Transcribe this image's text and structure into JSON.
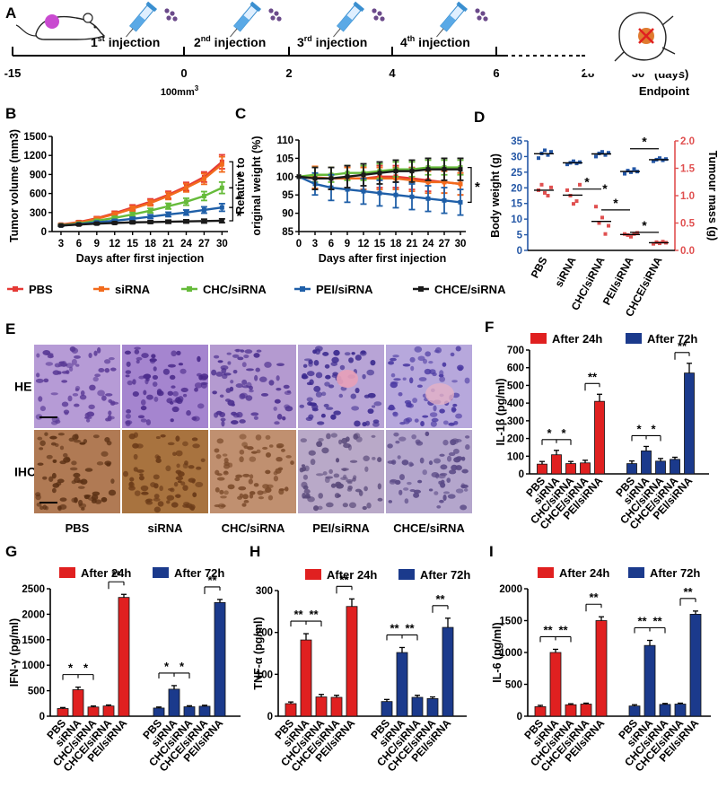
{
  "figure": {
    "panel_labels": [
      "A",
      "B",
      "C",
      "D",
      "E",
      "F",
      "G",
      "H",
      "I"
    ]
  },
  "timeline": {
    "ticks": [
      "-15",
      "0",
      "2",
      "4",
      "6",
      "28",
      "30"
    ],
    "units": "(days)",
    "injections": [
      {
        "ord": "1",
        "sup": "st",
        "rest": " injection"
      },
      {
        "ord": "2",
        "sup": "nd",
        "rest": " injection"
      },
      {
        "ord": "3",
        "sup": "rd",
        "rest": " injection"
      },
      {
        "ord": "4",
        "sup": "th",
        "rest": " injection"
      }
    ],
    "volume_label": "100mm",
    "volume_sup": "3",
    "endpoint": "Endpoint"
  },
  "colors": {
    "PBS": "#e53935",
    "siRNA": "#f26b1d",
    "CHC/siRNA": "#66bb3a",
    "PEI/siRNA": "#1f5fa8",
    "CHCE/siRNA": "#1a1a1a",
    "bar24": "#e02020",
    "bar72": "#1b3a8c",
    "d_left": "#2457a6",
    "d_right": "#e05050"
  },
  "legend": {
    "groups": [
      "PBS",
      "siRNA",
      "CHC/siRNA",
      "PEI/siRNA",
      "CHCE/siRNA"
    ]
  },
  "histology": {
    "rows": [
      "HE",
      "IHC"
    ],
    "cols": [
      "PBS",
      "siRNA",
      "CHC/siRNA",
      "PEI/siRNA",
      "CHCE/siRNA"
    ]
  },
  "chart_data": [
    {
      "id": "B",
      "type": "line",
      "ylabel": "Tumor volume (mm3)",
      "xlabel": "Days after first injection",
      "x": [
        3,
        6,
        9,
        12,
        15,
        18,
        21,
        24,
        27,
        30
      ],
      "xticks": [
        "3",
        "6",
        "9",
        "12",
        "15",
        "18",
        "21",
        "24",
        "27",
        "30"
      ],
      "ylim": [
        0,
        1500
      ],
      "yticks": [
        0,
        300,
        600,
        900,
        1200,
        1500
      ],
      "series": [
        {
          "name": "PBS",
          "values": [
            110,
            150,
            210,
            290,
            380,
            470,
            580,
            710,
            860,
            1100
          ],
          "err": [
            15,
            20,
            25,
            30,
            40,
            45,
            55,
            65,
            80,
            110
          ]
        },
        {
          "name": "siRNA",
          "values": [
            105,
            140,
            200,
            275,
            360,
            450,
            560,
            690,
            830,
            1060
          ],
          "err": [
            15,
            20,
            25,
            30,
            40,
            45,
            55,
            65,
            85,
            120
          ]
        },
        {
          "name": "CHC/siRNA",
          "values": [
            100,
            125,
            170,
            215,
            270,
            330,
            400,
            470,
            560,
            690
          ],
          "err": [
            12,
            15,
            20,
            25,
            30,
            35,
            45,
            55,
            70,
            90
          ]
        },
        {
          "name": "PEI/siRNA",
          "values": [
            95,
            115,
            145,
            170,
            200,
            235,
            270,
            300,
            340,
            380
          ],
          "err": [
            10,
            12,
            15,
            20,
            25,
            30,
            35,
            40,
            50,
            60
          ]
        },
        {
          "name": "CHCE/siRNA",
          "values": [
            95,
            110,
            125,
            135,
            145,
            150,
            155,
            160,
            165,
            170
          ],
          "err": [
            10,
            12,
            15,
            15,
            20,
            20,
            25,
            25,
            30,
            30
          ]
        }
      ],
      "annotations": [
        "*",
        "*",
        "*"
      ]
    },
    {
      "id": "C",
      "type": "line",
      "ylabel": "Relative to original weight (%)",
      "ylabel_lines": [
        "Relative to",
        "original weight (%)"
      ],
      "xlabel": "Days after first injection",
      "x": [
        0,
        3,
        6,
        9,
        12,
        15,
        18,
        21,
        24,
        27,
        30
      ],
      "xticks": [
        "0",
        "3",
        "6",
        "9",
        "12",
        "15",
        "18",
        "21",
        "24",
        "27",
        "30"
      ],
      "ylim": [
        85,
        110
      ],
      "yticks": [
        85,
        90,
        95,
        100,
        105,
        110
      ],
      "series": [
        {
          "name": "PBS",
          "values": [
            100,
            99.5,
            99.5,
            99.5,
            99.5,
            100,
            100,
            99.5,
            99,
            98.5,
            98
          ],
          "err": [
            0,
            3,
            3,
            3,
            3,
            3,
            3,
            3,
            3,
            3,
            3
          ]
        },
        {
          "name": "siRNA",
          "values": [
            100,
            99.8,
            99.5,
            99.5,
            99.5,
            99.5,
            99.5,
            99,
            98.5,
            98.5,
            98
          ],
          "err": [
            0,
            3,
            3,
            3,
            3,
            3,
            3,
            3,
            3,
            3,
            3
          ]
        },
        {
          "name": "CHC/siRNA",
          "values": [
            100,
            100.5,
            100.5,
            101,
            101,
            101.5,
            102,
            102,
            102.5,
            102.5,
            102.5
          ],
          "err": [
            0,
            2,
            2,
            2,
            2,
            2,
            2,
            2,
            2,
            2,
            2
          ]
        },
        {
          "name": "PEI/siRNA",
          "values": [
            100,
            98,
            97,
            96.5,
            96,
            95.5,
            95,
            94.5,
            94,
            93.5,
            93
          ],
          "err": [
            0,
            3,
            3.5,
            3.5,
            3.5,
            3.5,
            3.5,
            3.5,
            3.5,
            3.5,
            3.5
          ]
        },
        {
          "name": "CHCE/siRNA",
          "values": [
            100,
            99.5,
            99.5,
            100,
            100.5,
            101,
            101.5,
            101.5,
            102,
            102,
            102
          ],
          "err": [
            0,
            3,
            3,
            3,
            3,
            3,
            3,
            3,
            3,
            3,
            3
          ]
        }
      ],
      "annotations": [
        "*"
      ]
    },
    {
      "id": "D",
      "type": "scatter",
      "ylabel": "Body weight (g)",
      "ylabel_right": "Tumour mass (g)",
      "categories": [
        "PBS",
        "siRNA",
        "CHC/siRNA",
        "PEI/siRNA",
        "CHCE/siRNA"
      ],
      "ylim": [
        0,
        35
      ],
      "yticks": [
        0,
        5,
        10,
        15,
        20,
        25,
        30,
        35
      ],
      "ylim_right": [
        0,
        2.0
      ],
      "yticks_right": [
        "0.0",
        "0.5",
        "1.0",
        "1.5",
        "2.0"
      ],
      "body_weight": [
        [
          29.5,
          31,
          32,
          30.5,
          31.5
        ],
        [
          27.5,
          28,
          28.5,
          27.8,
          28.2
        ],
        [
          30,
          31,
          31.5,
          30.5,
          31.2
        ],
        [
          24.5,
          25.5,
          25,
          26,
          25.2
        ],
        [
          28.5,
          29,
          29.5,
          28.8,
          29.2
        ]
      ],
      "tumour_mass": [
        [
          1.1,
          1.2,
          1.05,
          1.0,
          1.15
        ],
        [
          1.1,
          1.0,
          0.85,
          0.9,
          1.2
        ],
        [
          0.8,
          0.5,
          0.6,
          0.3,
          0.45
        ],
        [
          0.3,
          0.28,
          0.25,
          0.3,
          0.32
        ],
        [
          0.12,
          0.15,
          0.13,
          0.16,
          0.14
        ]
      ],
      "annotations": [
        "*",
        "*",
        "*",
        "*",
        "*"
      ]
    },
    {
      "id": "F",
      "type": "bar",
      "ylabel": "IL-1β (pg/ml)",
      "legend": [
        "After 24h",
        "After 72h"
      ],
      "categories": [
        "PBS",
        "siRNA",
        "CHC/siRNA",
        "CHCE/siRNA",
        "PEI/siRNA"
      ],
      "ylim": [
        0,
        700
      ],
      "yticks": [
        0,
        100,
        200,
        300,
        400,
        500,
        600,
        700
      ],
      "series": [
        {
          "name": "After 24h",
          "values": [
            55,
            108,
            58,
            62,
            410
          ],
          "err": [
            15,
            25,
            12,
            15,
            40
          ]
        },
        {
          "name": "After 72h",
          "values": [
            58,
            130,
            72,
            82,
            570
          ],
          "err": [
            15,
            25,
            15,
            12,
            55
          ]
        }
      ],
      "annotations": [
        "*",
        "*",
        "**",
        "*",
        "*",
        "**"
      ]
    },
    {
      "id": "G",
      "type": "bar",
      "ylabel": "IFN-γ (pg/ml)",
      "legend": [
        "After 24h",
        "After 72h"
      ],
      "categories": [
        "PBS",
        "siRNA",
        "CHC/siRNA",
        "CHCE/siRNA",
        "PEI/siRNA"
      ],
      "ylim": [
        0,
        2500
      ],
      "yticks": [
        0,
        500,
        1000,
        1500,
        2000,
        2500
      ],
      "series": [
        {
          "name": "After 24h",
          "values": [
            150,
            520,
            180,
            200,
            2330
          ],
          "err": [
            20,
            50,
            20,
            20,
            60
          ]
        },
        {
          "name": "After 72h",
          "values": [
            160,
            530,
            185,
            195,
            2230
          ],
          "err": [
            20,
            70,
            20,
            20,
            60
          ]
        }
      ],
      "annotations": [
        "*",
        "*",
        "**",
        "*",
        "*",
        "**"
      ]
    },
    {
      "id": "H",
      "type": "bar",
      "ylabel": "TNF-α (pg/ml)",
      "legend": [
        "After 24h",
        "After 72h"
      ],
      "categories": [
        "PBS",
        "siRNA",
        "CHC/siRNA",
        "CHCE/siRNA",
        "PEI/siRNA"
      ],
      "ylim": [
        0,
        300
      ],
      "yticks": [
        0,
        100,
        200,
        300
      ],
      "series": [
        {
          "name": "After 24h",
          "values": [
            30,
            182,
            46,
            45,
            262
          ],
          "err": [
            4,
            15,
            6,
            5,
            18
          ]
        },
        {
          "name": "After 72h",
          "values": [
            35,
            152,
            45,
            42,
            212
          ],
          "err": [
            5,
            12,
            5,
            4,
            22
          ]
        }
      ],
      "annotations": [
        "**",
        "**",
        "**",
        "**",
        "**",
        "**"
      ]
    },
    {
      "id": "I",
      "type": "bar",
      "ylabel": "IL-6 (pg/ml)",
      "legend": [
        "After 24h",
        "After 72h"
      ],
      "categories": [
        "PBS",
        "siRNA",
        "CHC/siRNA",
        "CHCE/siRNA",
        "PEI/siRNA"
      ],
      "ylim": [
        0,
        2000
      ],
      "yticks": [
        0,
        500,
        1000,
        1500,
        2000
      ],
      "series": [
        {
          "name": "After 24h",
          "values": [
            150,
            1000,
            180,
            190,
            1500
          ],
          "err": [
            20,
            50,
            15,
            15,
            60
          ]
        },
        {
          "name": "After 72h",
          "values": [
            160,
            1110,
            185,
            190,
            1600
          ],
          "err": [
            20,
            80,
            15,
            15,
            50
          ]
        }
      ],
      "annotations": [
        "**",
        "**",
        "**",
        "**",
        "**",
        "**"
      ]
    }
  ]
}
